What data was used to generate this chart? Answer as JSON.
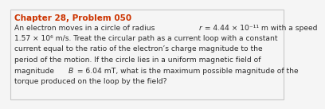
{
  "title": "Chapter 28, Problem 050",
  "title_color": "#cc3300",
  "body_color": "#2b2b2b",
  "background_color": "#f5f5f5",
  "border_color": "#c8c8c8",
  "font_size_title": 7.5,
  "font_size_body": 6.6,
  "line_segments": [
    [
      {
        "text": "An electron moves in a circle of radius ",
        "style": "normal"
      },
      {
        "text": "r",
        "style": "italic"
      },
      {
        "text": " = 4.44 × 10⁻¹¹ m with a speed",
        "style": "normal"
      }
    ],
    [
      {
        "text": "1.57 × 10⁶ m/s. Treat the circular path as a current loop with a constant",
        "style": "normal"
      }
    ],
    [
      {
        "text": "current equal to the ratio of the electron’s charge magnitude to the",
        "style": "normal"
      }
    ],
    [
      {
        "text": "period of the motion. If the circle lies in a uniform magnetic field of",
        "style": "normal"
      }
    ],
    [
      {
        "text": "magnitude ",
        "style": "normal"
      },
      {
        "text": "B",
        "style": "italic"
      },
      {
        "text": " = 6.04 mT, what is the maximum possible magnitude of the",
        "style": "normal"
      }
    ],
    [
      {
        "text": "torque produced on the loop by the field?",
        "style": "normal"
      }
    ]
  ]
}
